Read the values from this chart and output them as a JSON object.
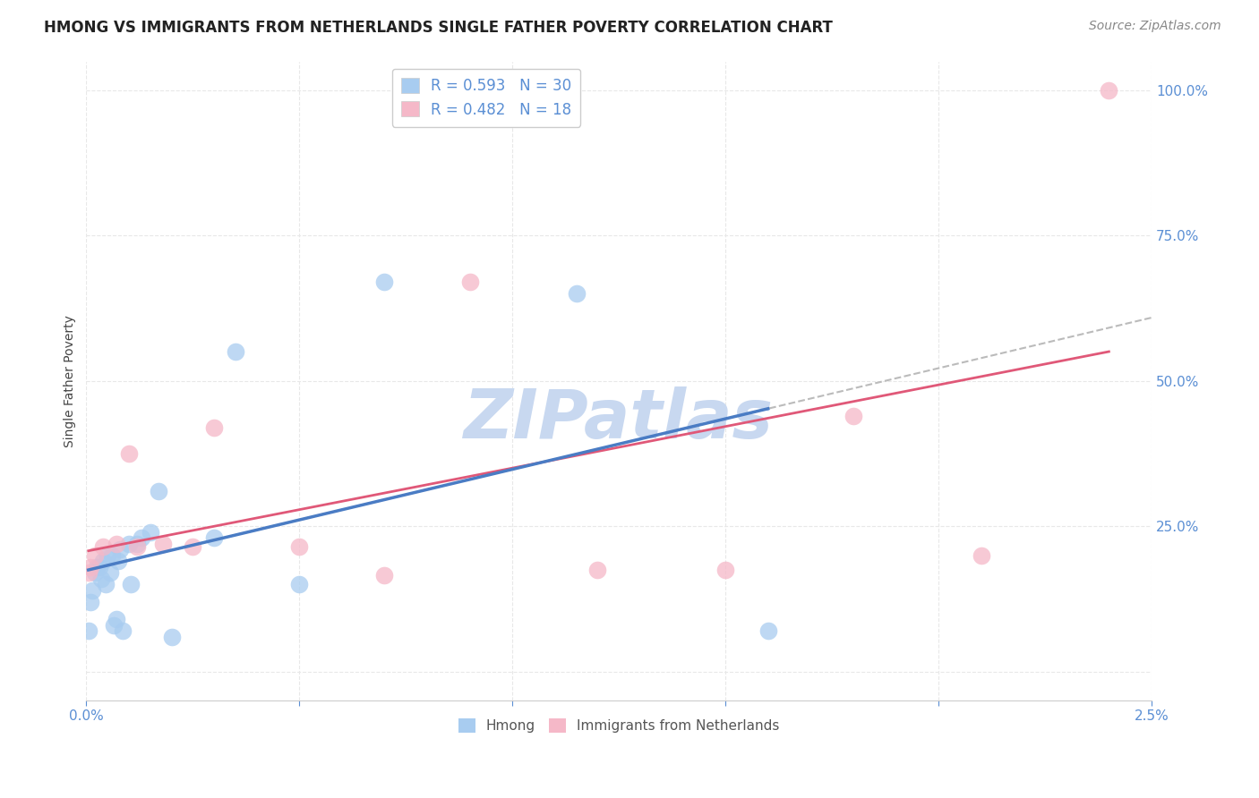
{
  "title": "HMONG VS IMMIGRANTS FROM NETHERLANDS SINGLE FATHER POVERTY CORRELATION CHART",
  "source": "Source: ZipAtlas.com",
  "ylabel": "Single Father Poverty",
  "x_lim": [
    0.0,
    0.025
  ],
  "y_lim": [
    -0.05,
    1.05
  ],
  "hmong_R": 0.593,
  "hmong_N": 30,
  "netherlands_R": 0.482,
  "netherlands_N": 18,
  "hmong_color": "#A8CCF0",
  "netherlands_color": "#F5B8C8",
  "hmong_line_color": "#4A7CC4",
  "netherlands_line_color": "#E05878",
  "dashed_line_color": "#BBBBBB",
  "watermark": "ZIPatlas",
  "watermark_color": "#C8D8F0",
  "background_color": "#FFFFFF",
  "grid_color": "#E8E8E8",
  "hmong_x": [
    5e-05,
    0.0001,
    0.00015,
    0.0002,
    0.00025,
    0.0003,
    0.00035,
    0.0004,
    0.00045,
    0.0005,
    0.00055,
    0.0006,
    0.00065,
    0.0007,
    0.00075,
    0.0008,
    0.00085,
    0.001,
    0.00105,
    0.0012,
    0.0013,
    0.0015,
    0.0017,
    0.002,
    0.003,
    0.0035,
    0.005,
    0.007,
    0.0115,
    0.016
  ],
  "hmong_y": [
    0.07,
    0.12,
    0.14,
    0.17,
    0.18,
    0.18,
    0.16,
    0.19,
    0.15,
    0.2,
    0.17,
    0.2,
    0.08,
    0.09,
    0.19,
    0.21,
    0.07,
    0.22,
    0.15,
    0.22,
    0.23,
    0.24,
    0.31,
    0.06,
    0.23,
    0.55,
    0.15,
    0.67,
    0.65,
    0.07
  ],
  "netherlands_x": [
    5e-05,
    0.0001,
    0.0002,
    0.0004,
    0.0007,
    0.001,
    0.0012,
    0.0018,
    0.0025,
    0.003,
    0.005,
    0.007,
    0.009,
    0.012,
    0.015,
    0.018,
    0.021,
    0.024
  ],
  "netherlands_y": [
    0.17,
    0.18,
    0.2,
    0.215,
    0.22,
    0.375,
    0.215,
    0.22,
    0.215,
    0.42,
    0.215,
    0.165,
    0.67,
    0.175,
    0.175,
    0.44,
    0.2,
    1.0
  ],
  "title_fontsize": 12,
  "axis_label_fontsize": 10,
  "tick_fontsize": 11,
  "legend_fontsize": 12,
  "source_fontsize": 10,
  "y_ticks": [
    0.0,
    0.25,
    0.5,
    0.75,
    1.0
  ],
  "y_tick_labels": [
    "",
    "25.0%",
    "50.0%",
    "75.0%",
    "100.0%"
  ],
  "tick_color": "#5B8FD4"
}
